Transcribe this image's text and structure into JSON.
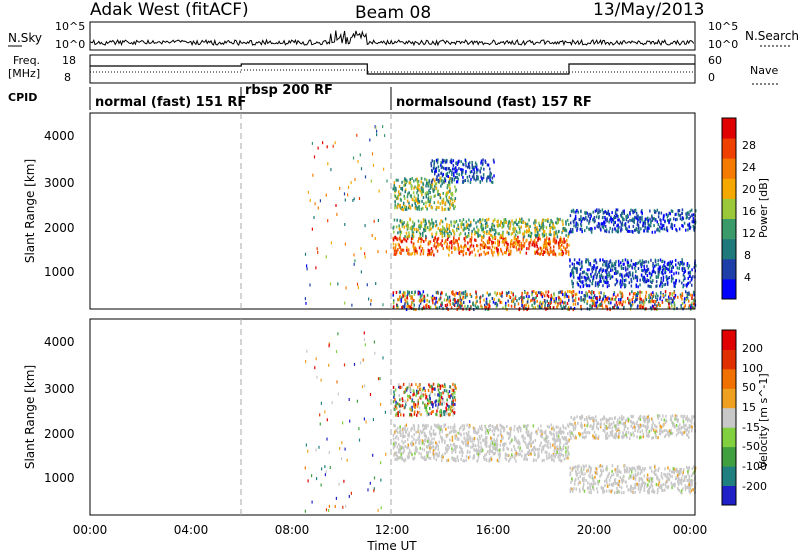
{
  "header": {
    "station": "Adak West (fitACF)",
    "beam": "Beam 08",
    "date": "13/May/2013"
  },
  "strip_labels": {
    "nsky": "N.Sky",
    "nsky_ticks": [
      "10^5",
      "10^0"
    ],
    "nsearch": "N.Search",
    "nsearch_ticks": [
      "10^5",
      "10^0"
    ],
    "freq_line1": "Freq.",
    "freq_line2": "[MHz]",
    "freq_ticks": [
      "18",
      "8"
    ],
    "nave": "Nave",
    "nave_ticks": [
      "60",
      "0"
    ],
    "cpid": "CPID"
  },
  "cpid_modes": [
    {
      "label": "normal (fast) 151 RF",
      "start_hour": 0
    },
    {
      "label": "rbsp 200 RF",
      "start_hour": 6
    },
    {
      "label": "normalsound (fast) 157 RF",
      "start_hour": 12
    }
  ],
  "chart_data": [
    {
      "type": "heatmap",
      "name": "power",
      "ylabel": "Slant Range [km]",
      "ylim": [
        180,
        4500
      ],
      "yticks": [
        "1000",
        "2000",
        "3000",
        "4000"
      ],
      "colorbar": {
        "label": "Power [dB]",
        "ticks": [
          "4",
          "8",
          "12",
          "16",
          "20",
          "24",
          "28"
        ],
        "colors": [
          "#0000ff",
          "#1f3fa8",
          "#1e7a7a",
          "#3a9a6a",
          "#9ac83a",
          "#f5a800",
          "#f57a00",
          "#f04000",
          "#e00000"
        ]
      },
      "regions": [
        {
          "t0": 12.0,
          "t1": 19.0,
          "r0": 1400,
          "r1": 1800,
          "level": "high"
        },
        {
          "t0": 12.0,
          "t1": 19.0,
          "r0": 1800,
          "r1": 2200,
          "level": "mid"
        },
        {
          "t0": 12.0,
          "t1": 14.5,
          "r0": 2400,
          "r1": 3100,
          "level": "mid"
        },
        {
          "t0": 13.5,
          "t1": 16.0,
          "r0": 3000,
          "r1": 3500,
          "level": "low"
        },
        {
          "t0": 19.0,
          "t1": 24.0,
          "r0": 1900,
          "r1": 2400,
          "level": "low"
        },
        {
          "t0": 19.0,
          "t1": 24.0,
          "r0": 700,
          "r1": 1300,
          "level": "low"
        },
        {
          "t0": 12.0,
          "t1": 24.0,
          "r0": 200,
          "r1": 600,
          "level": "mixed"
        }
      ]
    },
    {
      "type": "heatmap",
      "name": "velocity",
      "ylabel": "Slant Range [km]",
      "ylim": [
        180,
        4500
      ],
      "yticks": [
        "1000",
        "2000",
        "3000",
        "4000"
      ],
      "colorbar": {
        "label": "Velocity [m s^-1]",
        "ticks": [
          "200",
          "100",
          "50",
          "15",
          "-15",
          "-50",
          "-100",
          "-200"
        ],
        "colors": [
          "#2020c8",
          "#208080",
          "#40a040",
          "#80d040",
          "#c8c8c8",
          "#f0a020",
          "#f07000",
          "#e03000",
          "#e00000"
        ]
      },
      "regions": [
        {
          "t0": 12.0,
          "t1": 19.0,
          "r0": 1400,
          "r1": 2200,
          "level": "ground"
        },
        {
          "t0": 12.0,
          "t1": 14.5,
          "r0": 2400,
          "r1": 3100,
          "level": "mixed"
        },
        {
          "t0": 19.0,
          "t1": 24.0,
          "r0": 1900,
          "r1": 2400,
          "level": "ground"
        },
        {
          "t0": 19.0,
          "t1": 24.0,
          "r0": 700,
          "r1": 1300,
          "level": "ground"
        }
      ]
    }
  ],
  "xaxis": {
    "label": "Time UT",
    "ticks": [
      "00:00",
      "04:00",
      "08:00",
      "12:00",
      "16:00",
      "20:00",
      "00:00"
    ]
  }
}
